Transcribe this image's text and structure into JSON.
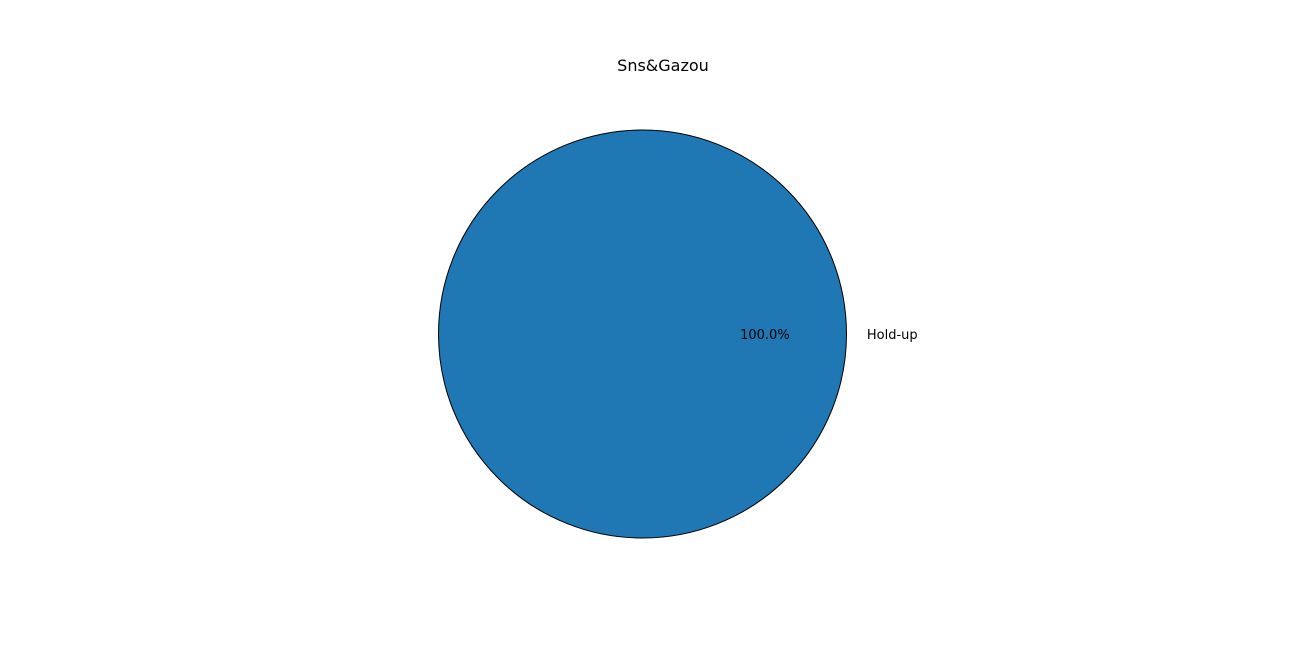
{
  "chart_data": {
    "type": "pie",
    "title": "Sns&Gazou",
    "labels": [
      "Hold-up"
    ],
    "values": [
      100
    ],
    "percent_labels": [
      "100.0%"
    ],
    "colors": [
      "#1f77b4"
    ],
    "edge_color": "#000000"
  }
}
